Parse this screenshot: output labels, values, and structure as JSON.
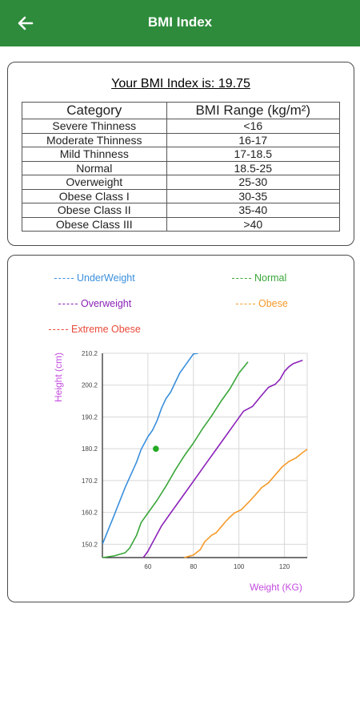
{
  "appbar": {
    "title": "BMI Index",
    "back_icon": "arrow-left-icon",
    "color": "#2e8b3b"
  },
  "result": {
    "text": "Your BMI Index is: 19.75",
    "value": 19.75
  },
  "table": {
    "headers": [
      "Category",
      "BMI Range (kg/m²)"
    ],
    "rows": [
      [
        "Severe Thinness",
        "<16"
      ],
      [
        "Moderate Thinness",
        "16-17"
      ],
      [
        "Mild Thinness",
        "17-18.5"
      ],
      [
        "Normal",
        "18.5-25"
      ],
      [
        "Overweight",
        "25-30"
      ],
      [
        "Obese Class I",
        "30-35"
      ],
      [
        "Obese Class II",
        "35-40"
      ],
      [
        "Obese Class III",
        ">40"
      ]
    ]
  },
  "chart_data": {
    "type": "line",
    "xlabel": "Weight (KG)",
    "ylabel": "Height (cm)",
    "xlim": [
      40,
      130
    ],
    "ylim": [
      146,
      210.2
    ],
    "x_ticks": [
      "60",
      "80",
      "100",
      "120"
    ],
    "y_ticks": [
      "150.2",
      "160.2",
      "170.2",
      "180.2",
      "190.2",
      "200.2",
      "210.2"
    ],
    "grid": true,
    "legend": [
      {
        "name": "UnderWeight",
        "color": "#3a8fdc"
      },
      {
        "name": "Normal",
        "color": "#3aa639"
      },
      {
        "name": "Overweight",
        "color": "#8b22b8"
      },
      {
        "name": "Obese",
        "color": "#f59a2a"
      },
      {
        "name": "Extreme Obese",
        "color": "#e84a3a"
      }
    ],
    "series": [
      {
        "name": "UnderWeight",
        "color": "#3a8fdc",
        "x": [
          40,
          45,
          50,
          55,
          57,
          60,
          62,
          64,
          66,
          68,
          70,
          72,
          74,
          76,
          78,
          80,
          82
        ],
        "y": [
          150.2,
          159,
          168,
          176,
          180,
          184,
          186,
          189,
          193,
          196,
          198,
          201,
          204,
          206,
          208,
          210,
          210.2
        ]
      },
      {
        "name": "Normal",
        "color": "#3aa639",
        "x": [
          40,
          45,
          50,
          52,
          55,
          57,
          60,
          64,
          68,
          72,
          76,
          80,
          84,
          88,
          92,
          96,
          100,
          104
        ],
        "y": [
          146,
          146.5,
          147.5,
          149,
          153,
          157,
          160,
          164,
          168.5,
          173.5,
          178,
          182,
          186.5,
          190.5,
          195,
          199,
          204,
          207.5
        ]
      },
      {
        "name": "Overweight",
        "color": "#8b22b8",
        "x": [
          58,
          60,
          63,
          66,
          70,
          74,
          78,
          82,
          86,
          90,
          94,
          98,
          102,
          106,
          110,
          113,
          116,
          118,
          120,
          122,
          124,
          126,
          128
        ],
        "y": [
          146,
          148,
          152,
          156,
          160,
          164,
          168,
          172,
          176,
          180,
          184,
          188,
          192,
          193.5,
          197,
          199.5,
          200.5,
          202,
          204.5,
          206,
          207,
          207.5,
          208
        ]
      },
      {
        "name": "Obese",
        "color": "#f59a2a",
        "x": [
          76,
          80,
          83,
          85,
          88,
          90,
          92,
          94,
          96,
          98,
          101,
          104,
          107,
          110,
          113,
          116,
          119,
          122,
          125,
          128,
          131,
          134
        ],
        "y": [
          146,
          146.8,
          148.5,
          151,
          153,
          153.8,
          155.5,
          157.2,
          158.7,
          160,
          161,
          163.2,
          165.5,
          168,
          169.5,
          172,
          174.5,
          176.2,
          177.3,
          179,
          180.5,
          182.2
        ]
      }
    ],
    "marker": {
      "x": 63.5,
      "y": 180.2,
      "color": "#22aa22"
    }
  }
}
